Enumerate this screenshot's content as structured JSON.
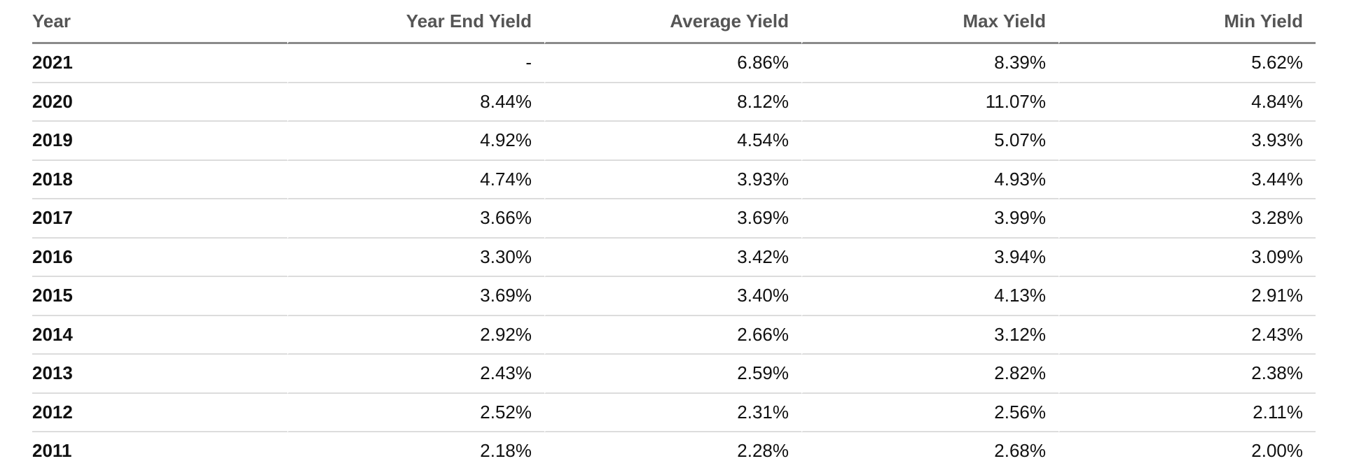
{
  "table": {
    "headers": [
      "Year",
      "Year End Yield",
      "Average Yield",
      "Max Yield",
      "Min Yield"
    ],
    "rows": [
      [
        "2021",
        "-",
        "6.86%",
        "8.39%",
        "5.62%"
      ],
      [
        "2020",
        "8.44%",
        "8.12%",
        "11.07%",
        "4.84%"
      ],
      [
        "2019",
        "4.92%",
        "4.54%",
        "5.07%",
        "3.93%"
      ],
      [
        "2018",
        "4.74%",
        "3.93%",
        "4.93%",
        "3.44%"
      ],
      [
        "2017",
        "3.66%",
        "3.69%",
        "3.99%",
        "3.28%"
      ],
      [
        "2016",
        "3.30%",
        "3.42%",
        "3.94%",
        "3.09%"
      ],
      [
        "2015",
        "3.69%",
        "3.40%",
        "4.13%",
        "2.91%"
      ],
      [
        "2014",
        "2.92%",
        "2.66%",
        "3.12%",
        "2.43%"
      ],
      [
        "2013",
        "2.43%",
        "2.59%",
        "2.82%",
        "2.38%"
      ],
      [
        "2012",
        "2.52%",
        "2.31%",
        "2.56%",
        "2.11%"
      ],
      [
        "2011",
        "2.18%",
        "2.28%",
        "2.68%",
        "2.00%"
      ]
    ]
  }
}
